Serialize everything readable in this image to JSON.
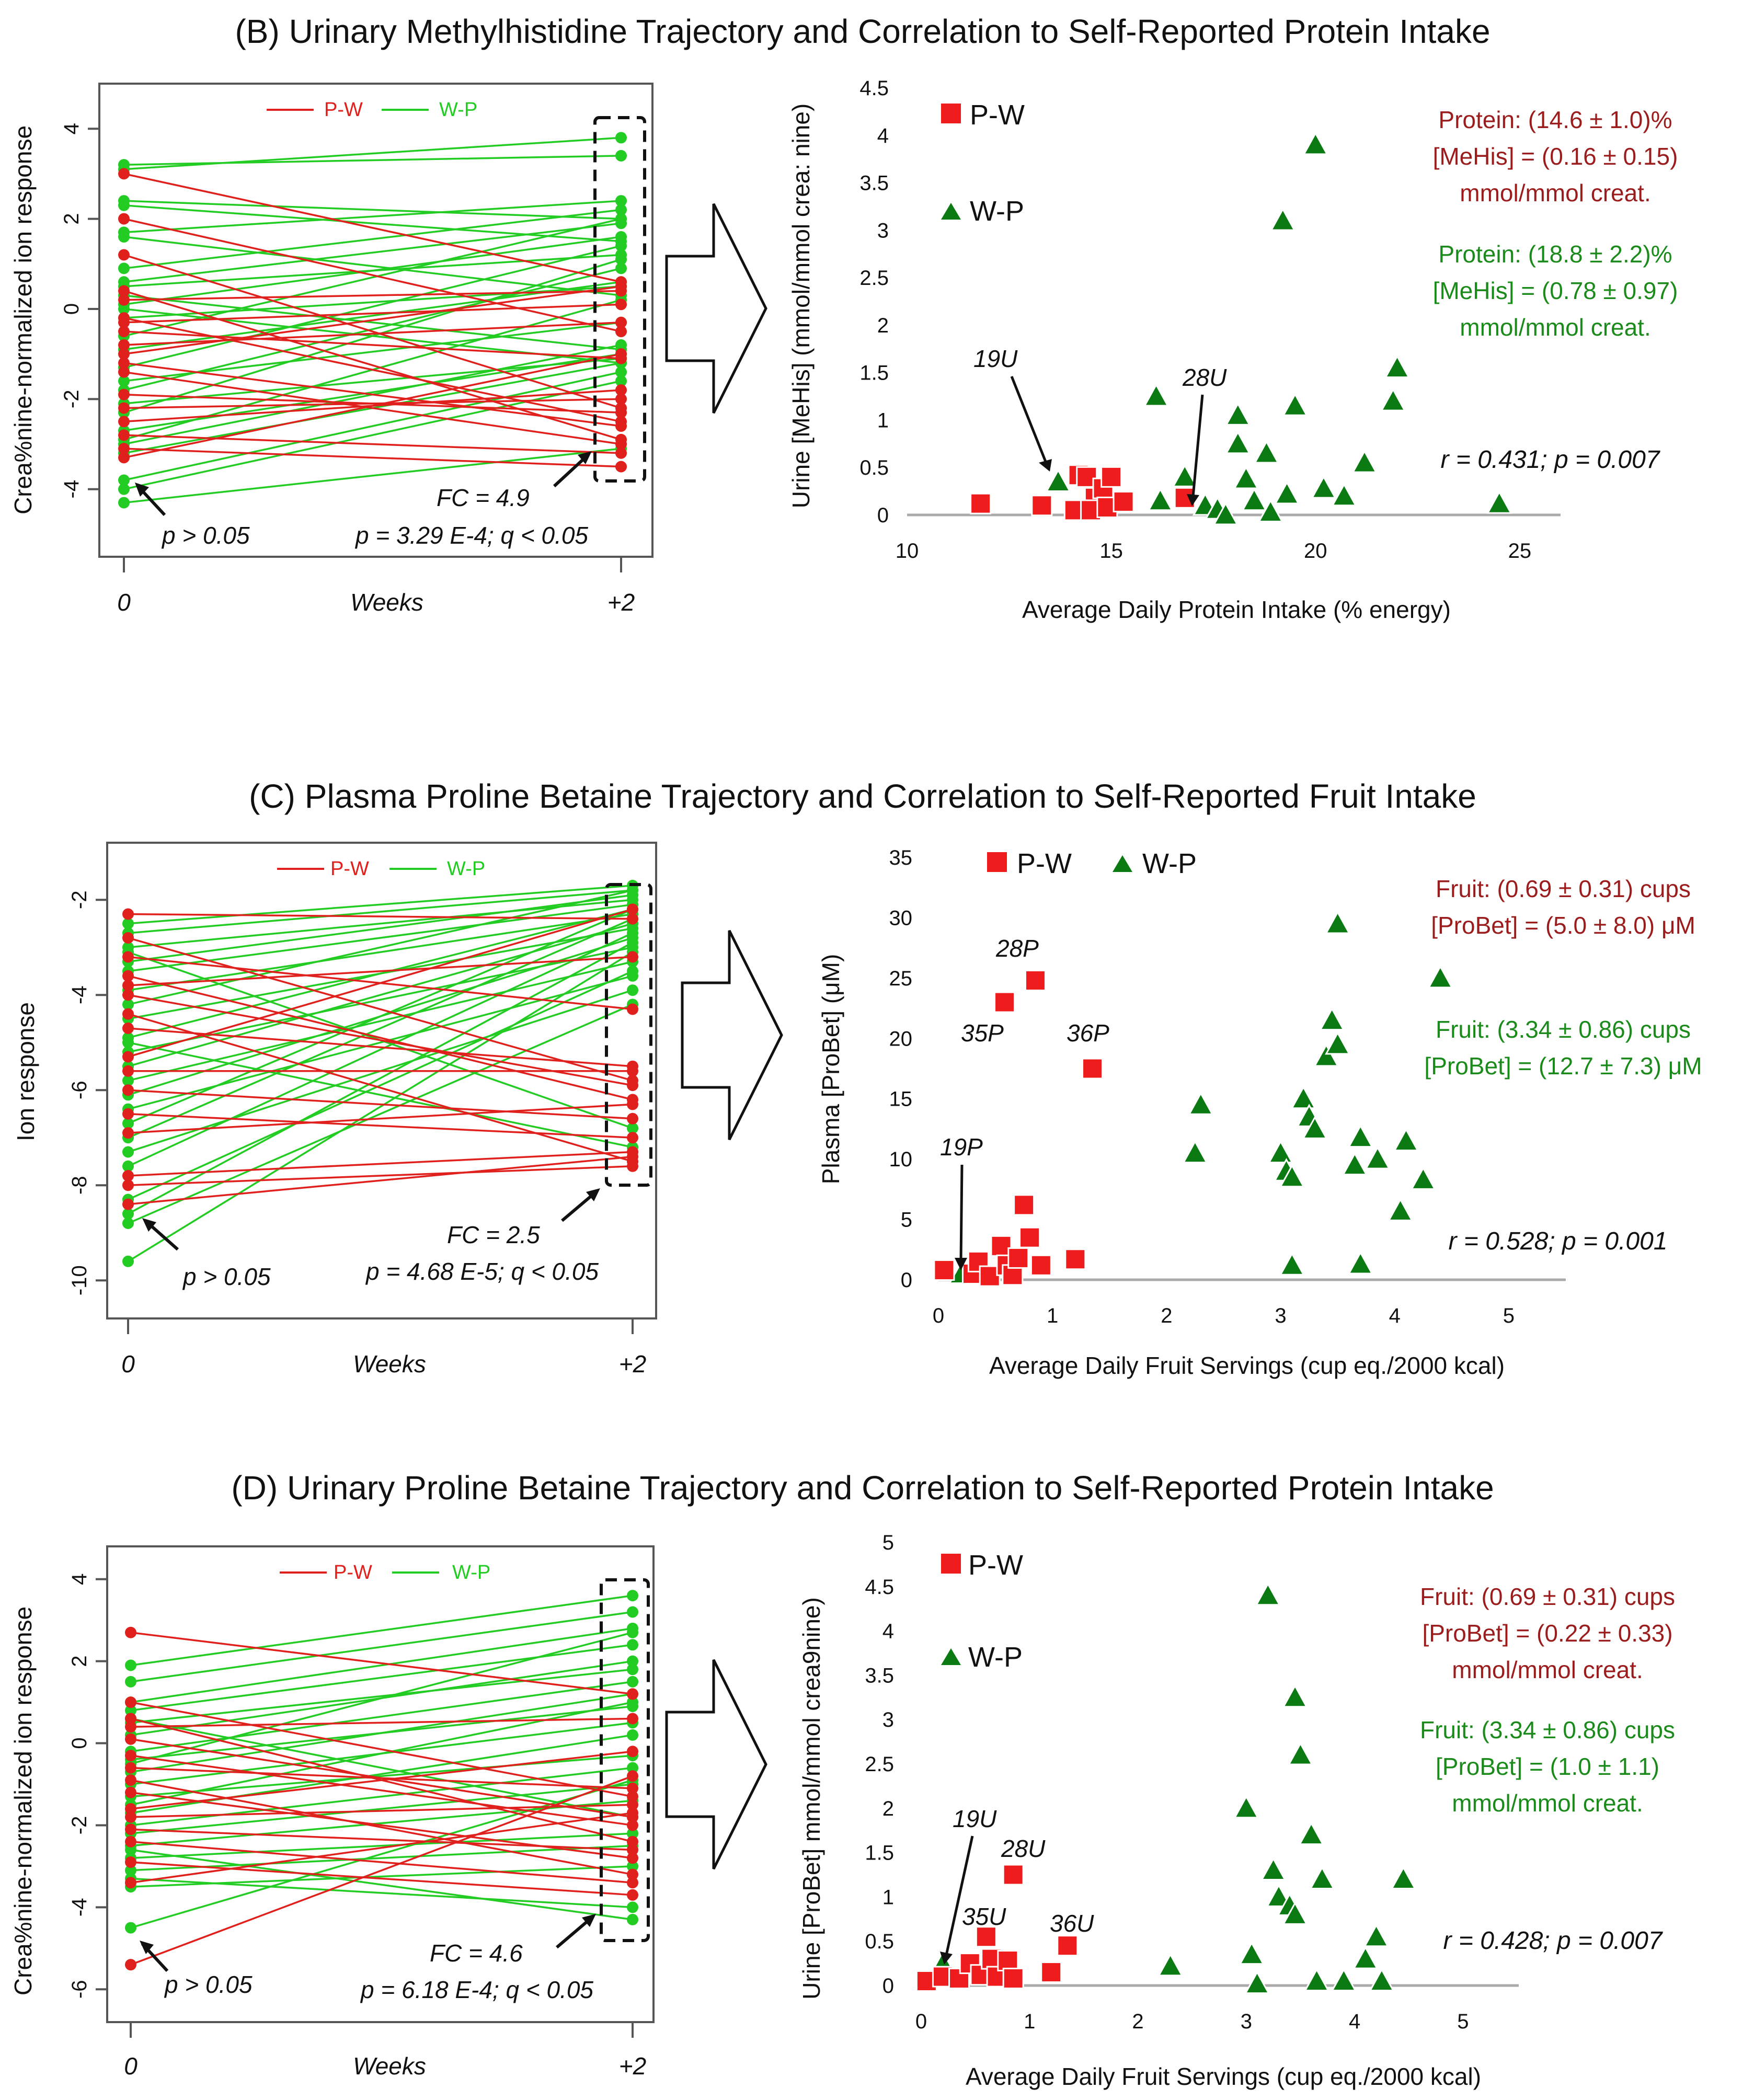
{
  "colors": {
    "pw": "#e0201c",
    "wp": "#22cc22",
    "red_marker": "#ee1c1c",
    "green_marker": "#0b7a12",
    "red_text": "#9b1c1c",
    "green_text": "#1a8a1a"
  },
  "panels": [
    {
      "title": "(B) Urinary Methylhistidine Trajectory and Correlation to Self-Reported Protein Intake",
      "traj": {
        "ylabel": "Crea%nine-normalized ion response",
        "xlabel": "Weeks",
        "xticks": [
          "0",
          "+2"
        ],
        "ymin": -5.5,
        "ymax": 5,
        "yticks": [
          -4,
          -2,
          0,
          2,
          4
        ],
        "legend": [
          "P-W",
          "W-P"
        ],
        "arrow_label": "p > 0.05",
        "fc_text": "FC = 4.9",
        "stat_text": "p = 3.29 E-4; q < 0.05",
        "wp_pairs": [
          [
            3.1,
            3.8
          ],
          [
            3.2,
            3.4
          ],
          [
            2.4,
            2.0
          ],
          [
            2.3,
            1.5
          ],
          [
            1.7,
            2.4
          ],
          [
            1.6,
            0.3
          ],
          [
            0.9,
            2.2
          ],
          [
            0.6,
            1.9
          ],
          [
            0.5,
            1.2
          ],
          [
            0.3,
            -0.9
          ],
          [
            0.1,
            1.6
          ],
          [
            -0.2,
            0.5
          ],
          [
            -0.6,
            2.0
          ],
          [
            -0.9,
            0.6
          ],
          [
            -1.3,
            1.4
          ],
          [
            -1.6,
            -0.3
          ],
          [
            -1.8,
            0.9
          ],
          [
            -2.1,
            -1.1
          ],
          [
            -2.3,
            1.1
          ],
          [
            -2.7,
            -1.0
          ],
          [
            -2.9,
            0.2
          ],
          [
            -3.2,
            -1.2
          ],
          [
            -3.8,
            -1.4
          ],
          [
            -4.0,
            -1.6
          ],
          [
            -4.3,
            -3.1
          ],
          [
            -3.0,
            -0.8
          ],
          [
            0.0,
            -1.2
          ]
        ],
        "pw_pairs": [
          [
            3.0,
            0.6
          ],
          [
            2.0,
            -0.5
          ],
          [
            1.2,
            -2.2
          ],
          [
            0.2,
            0.4
          ],
          [
            -0.2,
            -2.5
          ],
          [
            -0.5,
            -1.1
          ],
          [
            -0.8,
            -0.3
          ],
          [
            -1.0,
            0.5
          ],
          [
            -1.2,
            -2.6
          ],
          [
            -1.4,
            -3.0
          ],
          [
            -1.9,
            -2.3
          ],
          [
            -2.2,
            -2.0
          ],
          [
            -2.5,
            -1.8
          ],
          [
            -2.8,
            -3.2
          ],
          [
            -3.1,
            -3.5
          ],
          [
            -3.3,
            -1.0
          ],
          [
            0.4,
            -2.9
          ],
          [
            -0.3,
            0.1
          ]
        ]
      },
      "scatter": {
        "ylabel": "Urine [MeHis] (mmol/mmol crea: nine)",
        "xlabel": "Average Daily Protein Intake (% energy)",
        "xmin": 10,
        "xmax": 26,
        "ymin": 0,
        "ymax": 4.5,
        "xticks": [
          10,
          15,
          20,
          25
        ],
        "yticks": [
          0,
          0.5,
          1,
          1.5,
          2,
          2.5,
          3,
          3.5,
          4,
          4.5
        ],
        "legend_pw": "P-W",
        "legend_wp": "W-P",
        "pw_points": [
          [
            11.8,
            0.12
          ],
          [
            13.3,
            0.1
          ],
          [
            14.2,
            0.42
          ],
          [
            14.4,
            0.4
          ],
          [
            14.6,
            0.18
          ],
          [
            14.8,
            0.28
          ],
          [
            15.0,
            0.4
          ],
          [
            14.1,
            0.05
          ],
          [
            14.5,
            0.05
          ],
          [
            14.9,
            0.08
          ],
          [
            15.3,
            0.14
          ],
          [
            16.8,
            0.18
          ]
        ],
        "wp_points": [
          [
            13.7,
            0.35
          ],
          [
            16.1,
            1.25
          ],
          [
            16.2,
            0.15
          ],
          [
            16.8,
            0.4
          ],
          [
            17.3,
            0.1
          ],
          [
            17.6,
            0.06
          ],
          [
            17.8,
            0.0
          ],
          [
            18.1,
            1.05
          ],
          [
            18.1,
            0.75
          ],
          [
            18.3,
            0.38
          ],
          [
            18.5,
            0.15
          ],
          [
            18.8,
            0.65
          ],
          [
            18.9,
            0.03
          ],
          [
            19.3,
            0.22
          ],
          [
            19.2,
            3.1
          ],
          [
            19.5,
            1.15
          ],
          [
            20.0,
            3.9
          ],
          [
            20.2,
            0.28
          ],
          [
            20.7,
            0.2
          ],
          [
            21.2,
            0.55
          ],
          [
            22.0,
            1.55
          ],
          [
            21.9,
            1.2
          ],
          [
            24.5,
            0.12
          ]
        ],
        "labels": [
          "19U",
          "28U"
        ],
        "ann_red": [
          "Protein: (14.6 ± 1.0)%",
          "[MeHis] = (0.16 ± 0.15)",
          "mmol/mmol creat."
        ],
        "ann_green": [
          "Protein: (18.8 ± 2.2)%",
          "[MeHis] = (0.78 ± 0.97)",
          "mmol/mmol creat."
        ],
        "stat": "r = 0.431; p = 0.007"
      }
    },
    {
      "title": "(C) Plasma Proline Betaine Trajectory and Correlation to Self-Reported Fruit Intake",
      "traj": {
        "ylabel": "Ion response",
        "xlabel": "Weeks",
        "xticks": [
          "0",
          "+2"
        ],
        "ymin": -10.8,
        "ymax": -0.8,
        "yticks": [
          -2,
          -4,
          -6,
          -8,
          -10
        ],
        "legend": [
          "P-W",
          "W-P"
        ],
        "arrow_label": "p > 0.05",
        "fc_text": "FC = 2.5",
        "stat_text": "p = 4.68 E-5; q < 0.05",
        "wp_pairs": [
          [
            -2.5,
            -1.7
          ],
          [
            -2.7,
            -1.8
          ],
          [
            -3.0,
            -2.0
          ],
          [
            -3.3,
            -1.9
          ],
          [
            -3.5,
            -2.1
          ],
          [
            -3.9,
            -2.3
          ],
          [
            -4.2,
            -1.8
          ],
          [
            -4.5,
            -2.6
          ],
          [
            -4.9,
            -2.2
          ],
          [
            -5.2,
            -3.0
          ],
          [
            -5.5,
            -2.5
          ],
          [
            -5.8,
            -3.3
          ],
          [
            -6.1,
            -2.8
          ],
          [
            -6.4,
            -3.6
          ],
          [
            -7.0,
            -2.4
          ],
          [
            -7.3,
            -3.9
          ],
          [
            -7.6,
            -2.7
          ],
          [
            -8.6,
            -2.9
          ],
          [
            -8.8,
            -4.2
          ],
          [
            -9.6,
            -3.1
          ],
          [
            -3.1,
            -6.8
          ],
          [
            -5.0,
            -7.2
          ],
          [
            -8.3,
            -3.5
          ],
          [
            -6.7,
            -2.2
          ]
        ],
        "pw_pairs": [
          [
            -2.3,
            -2.4
          ],
          [
            -2.8,
            -5.8
          ],
          [
            -3.2,
            -4.3
          ],
          [
            -3.6,
            -6.2
          ],
          [
            -4.4,
            -7.5
          ],
          [
            -4.7,
            -5.5
          ],
          [
            -5.6,
            -5.6
          ],
          [
            -6.0,
            -6.6
          ],
          [
            -6.5,
            -7.0
          ],
          [
            -6.9,
            -6.3
          ],
          [
            -7.8,
            -7.3
          ],
          [
            -8.0,
            -7.6
          ],
          [
            -8.4,
            -7.4
          ],
          [
            -5.3,
            -2.2
          ],
          [
            -3.8,
            -3.2
          ],
          [
            -4.0,
            -5.9
          ]
        ]
      },
      "scatter": {
        "ylabel": "Plasma [ProBet] (μM)",
        "xlabel": "Average Daily Fruit Servings (cup eq./2000 kcal)",
        "xmin": 0,
        "xmax": 5.5,
        "ymin": 0,
        "ymax": 35,
        "xticks": [
          0,
          1,
          2,
          3,
          4,
          5
        ],
        "yticks": [
          0,
          5,
          10,
          15,
          20,
          25,
          30,
          35
        ],
        "legend_pw": "P-W",
        "legend_wp": "W-P",
        "pw_points": [
          [
            0.05,
            0.8
          ],
          [
            0.3,
            0.5
          ],
          [
            0.35,
            1.5
          ],
          [
            0.45,
            0.3
          ],
          [
            0.55,
            2.8
          ],
          [
            0.6,
            1.2
          ],
          [
            0.65,
            0.4
          ],
          [
            0.7,
            1.8
          ],
          [
            0.75,
            6.2
          ],
          [
            0.8,
            3.5
          ],
          [
            0.9,
            1.2
          ],
          [
            1.2,
            1.7
          ],
          [
            0.58,
            23.0
          ],
          [
            0.85,
            24.8
          ],
          [
            1.35,
            17.5
          ]
        ],
        "wp_points": [
          [
            0.2,
            0.5
          ],
          [
            2.3,
            14.5
          ],
          [
            2.25,
            10.5
          ],
          [
            3.0,
            10.5
          ],
          [
            3.05,
            9.0
          ],
          [
            3.1,
            8.5
          ],
          [
            3.1,
            1.2
          ],
          [
            3.2,
            15.0
          ],
          [
            3.25,
            13.5
          ],
          [
            3.3,
            12.5
          ],
          [
            3.4,
            18.5
          ],
          [
            3.45,
            21.5
          ],
          [
            3.5,
            19.5
          ],
          [
            3.5,
            29.5
          ],
          [
            3.65,
            9.5
          ],
          [
            3.7,
            11.8
          ],
          [
            3.7,
            1.3
          ],
          [
            3.85,
            10.0
          ],
          [
            4.05,
            5.7
          ],
          [
            4.1,
            11.5
          ],
          [
            4.25,
            8.3
          ],
          [
            4.4,
            25.0
          ]
        ],
        "labels": [
          "28P",
          "35P",
          "36P",
          "19P"
        ],
        "ann_red": [
          "Fruit: (0.69 ± 0.31) cups",
          "[ProBet] = (5.0 ± 8.0) μM"
        ],
        "ann_green": [
          "Fruit: (3.34 ± 0.86) cups",
          "[ProBet] = (12.7 ± 7.3) μM"
        ],
        "stat": "r = 0.528; p = 0.001"
      }
    },
    {
      "title": "(D) Urinary Proline Betaine Trajectory and Correlation to Self-Reported Protein Intake",
      "traj": {
        "ylabel": "Crea%nine-normalized ion response",
        "xlabel": "Weeks",
        "xticks": [
          "0",
          "+2"
        ],
        "ymin": -6.8,
        "ymax": 4.8,
        "yticks": [
          -6,
          -4,
          -2,
          0,
          2,
          4
        ],
        "legend": [
          "P-W",
          "W-P"
        ],
        "arrow_label": "p > 0.05",
        "fc_text": "FC = 4.6",
        "stat_text": "p = 6.18 E-4; q < 0.05",
        "wp_pairs": [
          [
            1.9,
            3.6
          ],
          [
            1.5,
            3.2
          ],
          [
            1.0,
            2.8
          ],
          [
            0.8,
            2.4
          ],
          [
            0.5,
            1.8
          ],
          [
            0.2,
            2.0
          ],
          [
            -0.2,
            1.5
          ],
          [
            -0.4,
            0.9
          ],
          [
            -0.7,
            1.2
          ],
          [
            -1.0,
            0.5
          ],
          [
            -1.3,
            -0.3
          ],
          [
            -1.7,
            0.2
          ],
          [
            -2.0,
            -0.6
          ],
          [
            -2.2,
            -1.0
          ],
          [
            -2.5,
            -1.4
          ],
          [
            -2.8,
            -2.2
          ],
          [
            -3.1,
            -2.5
          ],
          [
            -3.5,
            -3.0
          ],
          [
            -4.5,
            -0.9
          ],
          [
            -2.6,
            -4.3
          ],
          [
            -3.3,
            -4.0
          ],
          [
            0.6,
            -1.8
          ],
          [
            -1.5,
            1.0
          ],
          [
            -0.5,
            2.7
          ]
        ],
        "pw_pairs": [
          [
            2.7,
            1.2
          ],
          [
            1.0,
            -1.3
          ],
          [
            0.6,
            -2.4
          ],
          [
            0.4,
            0.6
          ],
          [
            0.1,
            -1.8
          ],
          [
            -0.3,
            -2.0
          ],
          [
            -0.6,
            -1.1
          ],
          [
            -0.9,
            -3.2
          ],
          [
            -1.2,
            -2.8
          ],
          [
            -1.6,
            -0.2
          ],
          [
            -2.1,
            -2.6
          ],
          [
            -2.4,
            -3.4
          ],
          [
            -2.9,
            -3.7
          ],
          [
            -3.4,
            -1.7
          ],
          [
            -5.4,
            -0.8
          ],
          [
            -1.8,
            -1.5
          ]
        ]
      },
      "scatter": {
        "ylabel": "Urine [ProBet] mmol/mmol crea9nine)",
        "xlabel": "Average Daily Fruit Servings (cup eq./2000 kcal)",
        "xmin": 0,
        "xmax": 5.5,
        "ymin": 0,
        "ymax": 5,
        "xticks": [
          0,
          1,
          2,
          3,
          4,
          5
        ],
        "yticks": [
          0,
          0.5,
          1,
          1.5,
          2,
          2.5,
          3,
          3.5,
          4,
          4.5,
          5
        ],
        "legend_pw": "P-W",
        "legend_wp": "W-P",
        "pw_points": [
          [
            0.05,
            0.05
          ],
          [
            0.2,
            0.1
          ],
          [
            0.35,
            0.08
          ],
          [
            0.45,
            0.25
          ],
          [
            0.55,
            0.12
          ],
          [
            0.6,
            0.55
          ],
          [
            0.65,
            0.3
          ],
          [
            0.7,
            0.1
          ],
          [
            0.8,
            0.28
          ],
          [
            0.85,
            0.08
          ],
          [
            1.2,
            0.15
          ],
          [
            0.85,
            1.25
          ],
          [
            1.35,
            0.45
          ]
        ],
        "wp_points": [
          [
            0.2,
            0.25
          ],
          [
            2.3,
            0.22
          ],
          [
            3.0,
            2.0
          ],
          [
            3.05,
            0.35
          ],
          [
            3.1,
            0.02
          ],
          [
            3.2,
            4.4
          ],
          [
            3.25,
            1.3
          ],
          [
            3.3,
            1.0
          ],
          [
            3.4,
            0.9
          ],
          [
            3.45,
            3.25
          ],
          [
            3.45,
            0.8
          ],
          [
            3.5,
            2.6
          ],
          [
            3.6,
            1.7
          ],
          [
            3.65,
            0.05
          ],
          [
            3.7,
            1.2
          ],
          [
            3.9,
            0.05
          ],
          [
            4.1,
            0.3
          ],
          [
            4.2,
            0.55
          ],
          [
            4.25,
            0.05
          ],
          [
            4.45,
            1.2
          ]
        ],
        "labels": [
          "19U",
          "28U",
          "35U",
          "36U"
        ],
        "ann_red": [
          "Fruit: (0.69 ± 0.31) cups",
          "[ProBet] = (0.22 ± 0.33)",
          "mmol/mmol creat."
        ],
        "ann_green": [
          "Fruit: (3.34 ± 0.86) cups",
          "[ProBet] = (1.0 ± 1.1)",
          "mmol/mmol creat."
        ],
        "stat": "r = 0.428; p = 0.007"
      }
    }
  ]
}
